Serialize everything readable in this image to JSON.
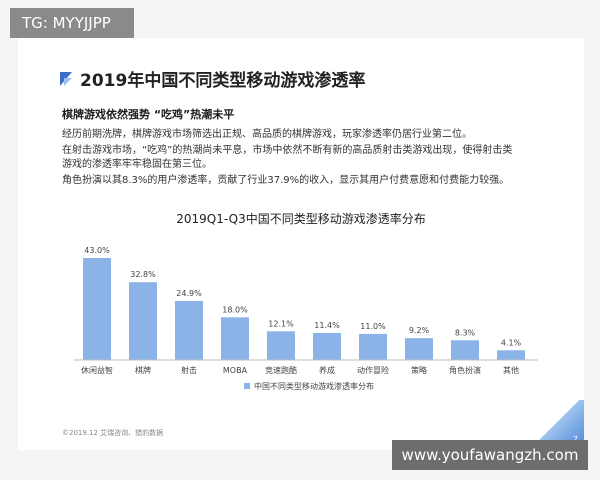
{
  "tag": "TG: MYYJJPP",
  "watermark": "www.youfawangzh.com",
  "title": "2019年中国不同类型移动游戏渗透率",
  "subhead": "棋牌游戏依然强势 “吃鸡”热潮未平",
  "paragraphs": [
    "经历前期洗牌，棋牌游戏市场筛选出正规、高品质的棋牌游戏，玩家渗透率仍居行业第二位。",
    "在射击游戏市场，“吃鸡”的热潮尚未平息，市场中依然不断有新的高品质射击类游戏出现，使得射击类",
    "游戏的渗透率牢牢稳固在第三位。",
    "角色扮演以其8.3%的用户渗透率，贡献了行业37.9%的收入，显示其用户付费意愿和付费能力较强。"
  ],
  "footer": "©2019.12  艾瑞咨询、猎豹数据",
  "page_number": "7",
  "colors": {
    "bar": "#8bb3e8",
    "accent": "#4a86d6"
  },
  "chart_data": {
    "type": "bar",
    "title": "2019Q1-Q3中国不同类型移动游戏渗透率分布",
    "categories": [
      "休闲益智",
      "棋牌",
      "射击",
      "MOBA",
      "竞速跑酷",
      "养成",
      "动作冒险",
      "策略",
      "角色扮演",
      "其他"
    ],
    "values": [
      43.0,
      32.8,
      24.9,
      18.0,
      12.1,
      11.4,
      11.0,
      9.2,
      8.3,
      4.1
    ],
    "value_labels": [
      "43.0%",
      "32.8%",
      "24.9%",
      "18.0%",
      "12.1%",
      "11.4%",
      "11.0%",
      "9.2%",
      "8.3%",
      "4.1%"
    ],
    "series": [
      {
        "name": "中国不同类型移动游戏渗透率分布"
      }
    ],
    "ylim": [
      0,
      43
    ],
    "legend": "bottom-center",
    "grid": false
  }
}
